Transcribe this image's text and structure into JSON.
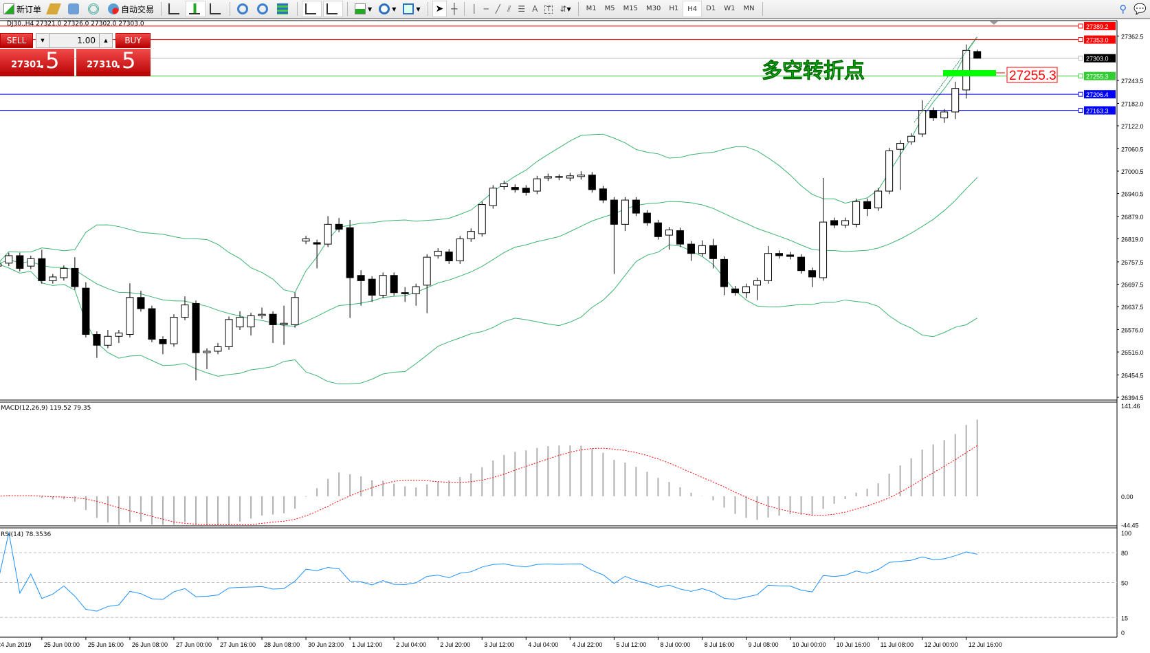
{
  "toolbar": {
    "new_order_label": "新订单",
    "auto_trading_label": "自动交易",
    "timeframes": [
      "M1",
      "M5",
      "M15",
      "M30",
      "H1",
      "H4",
      "D1",
      "W1",
      "MN"
    ],
    "active_timeframe": "H4"
  },
  "chart_header": "DJ30.,H4  27321.0 27326.0 27302.0 27303.0",
  "trade_panel": {
    "sell_label": "SELL",
    "buy_label": "BUY",
    "lot_value": "1.00",
    "sell_price_main": "27301",
    "sell_price_big": ".5",
    "buy_price_main": "27310",
    "buy_price_big": ".5"
  },
  "annotation": {
    "text": "多空转折点",
    "price_label": "27255.3",
    "color": "#00ff00"
  },
  "colors": {
    "bands": "#3cb371",
    "macd_hist": "#b0b0b0",
    "macd_signal": "#ff0000",
    "rsi": "#1e90ff",
    "line_red": "#ff0000",
    "line_green": "#32cd32",
    "line_blue": "#0000ff"
  },
  "chart_data": {
    "type": "candlestick",
    "symbol": "DJ30.",
    "timeframe": "H4",
    "ohlc": [
      [
        26746,
        26760,
        26738,
        26752
      ],
      [
        26754,
        26782,
        26746,
        26774
      ],
      [
        26774,
        26782,
        26732,
        26740
      ],
      [
        26746,
        26774,
        26738,
        26766
      ],
      [
        26766,
        26790,
        26699,
        26707
      ],
      [
        26707,
        26725,
        26699,
        26717
      ],
      [
        26715,
        26748,
        26707,
        26740
      ],
      [
        26740,
        26770,
        26683,
        26691
      ],
      [
        26687,
        26703,
        26555,
        26563
      ],
      [
        26563,
        26571,
        26500,
        26534
      ],
      [
        26534,
        26575,
        26526,
        26558
      ],
      [
        26558,
        26575,
        26540,
        26567
      ],
      [
        26563,
        26700,
        26555,
        26662
      ],
      [
        26662,
        26680,
        26624,
        26632
      ],
      [
        26632,
        26640,
        26542,
        26550
      ],
      [
        26550,
        26558,
        26510,
        26538
      ],
      [
        26538,
        26617,
        26530,
        26609
      ],
      [
        26609,
        26665,
        26601,
        26642
      ],
      [
        26646,
        26654,
        26440,
        26514
      ],
      [
        26514,
        26526,
        26470,
        26518
      ],
      [
        26518,
        26540,
        26510,
        26530
      ],
      [
        26530,
        26611,
        26522,
        26603
      ],
      [
        26583,
        26625,
        26575,
        26609
      ],
      [
        26583,
        26621,
        26560,
        26613
      ],
      [
        26613,
        26635,
        26605,
        26617
      ],
      [
        26617,
        26625,
        26540,
        26589
      ],
      [
        26589,
        26640,
        26535,
        26593
      ],
      [
        26589,
        26675,
        26581,
        26662
      ],
      [
        26813,
        26827,
        26805,
        26819
      ],
      [
        26809,
        26817,
        26740,
        26805
      ],
      [
        26805,
        26880,
        26797,
        26858
      ],
      [
        26858,
        26875,
        26837,
        26845
      ],
      [
        26849,
        26870,
        26607,
        26715
      ],
      [
        26721,
        26735,
        26640,
        26707
      ],
      [
        26711,
        26719,
        26650,
        26668
      ],
      [
        26668,
        26729,
        26660,
        26721
      ],
      [
        26721,
        26729,
        26667,
        26675
      ],
      [
        26675,
        26690,
        26650,
        26672
      ],
      [
        26672,
        26699,
        26640,
        26691
      ],
      [
        26695,
        26778,
        26620,
        26770
      ],
      [
        26774,
        26794,
        26766,
        26786
      ],
      [
        26784,
        26792,
        26752,
        26760
      ],
      [
        26760,
        26827,
        26752,
        26819
      ],
      [
        26819,
        26847,
        26811,
        26839
      ],
      [
        26833,
        26919,
        26825,
        26911
      ],
      [
        26908,
        26963,
        26900,
        26955
      ],
      [
        26959,
        26975,
        26951,
        26967
      ],
      [
        26957,
        26965,
        26943,
        26951
      ],
      [
        26955,
        26963,
        26935,
        26943
      ],
      [
        26947,
        26988,
        26939,
        26980
      ],
      [
        26982,
        26994,
        26974,
        26986
      ],
      [
        26986,
        26992,
        26976,
        26984
      ],
      [
        26982,
        26996,
        26974,
        26988
      ],
      [
        26986,
        27000,
        26978,
        26990
      ],
      [
        26990,
        26998,
        26943,
        26951
      ],
      [
        26953,
        26961,
        26915,
        26923
      ],
      [
        26923,
        26931,
        26725,
        26858
      ],
      [
        26858,
        26931,
        26840,
        26923
      ],
      [
        26923,
        26931,
        26880,
        26888
      ],
      [
        26888,
        26896,
        26854,
        26862
      ],
      [
        26862,
        26870,
        26817,
        26825
      ],
      [
        26829,
        26851,
        26790,
        26843
      ],
      [
        26841,
        26849,
        26797,
        26805
      ],
      [
        26805,
        26813,
        26760,
        26780
      ],
      [
        26780,
        26815,
        26772,
        26801
      ],
      [
        26801,
        26819,
        26740,
        26766
      ],
      [
        26764,
        26772,
        26668,
        26691
      ],
      [
        26685,
        26693,
        26667,
        26675
      ],
      [
        26675,
        26699,
        26660,
        26691
      ],
      [
        26695,
        26715,
        26655,
        26707
      ],
      [
        26707,
        26800,
        26699,
        26780
      ],
      [
        26780,
        26788,
        26766,
        26774
      ],
      [
        26776,
        26784,
        26764,
        26772
      ],
      [
        26770,
        26778,
        26726,
        26734
      ],
      [
        26734,
        26742,
        26690,
        26717
      ],
      [
        26715,
        26982,
        26707,
        26864
      ],
      [
        26868,
        26876,
        26848,
        26856
      ],
      [
        26856,
        26876,
        26848,
        26868
      ],
      [
        26858,
        26927,
        26850,
        26919
      ],
      [
        26919,
        26927,
        26880,
        26900
      ],
      [
        26902,
        26955,
        26894,
        26947
      ],
      [
        26947,
        27063,
        26939,
        27055
      ],
      [
        27059,
        27083,
        26950,
        27075
      ],
      [
        27079,
        27102,
        27071,
        27094
      ],
      [
        27100,
        27190,
        27092,
        27163
      ],
      [
        27163,
        27171,
        27135,
        27143
      ],
      [
        27143,
        27167,
        27130,
        27159
      ],
      [
        27159,
        27240,
        27140,
        27222
      ],
      [
        27218,
        27340,
        27195,
        27324
      ],
      [
        27321,
        27326,
        27302,
        27303
      ]
    ],
    "x_tick_labels": [
      "24 Jun 2019",
      "25 Jun 00:00",
      "25 Jun 16:00",
      "26 Jun 08:00",
      "27 Jun 00:00",
      "27 Jun 16:00",
      "28 Jun 08:00",
      "30 Jun 23:00",
      "1 Jul 12:00",
      "2 Jul 04:00",
      "2 Jul 20:00",
      "3 Jul 12:00",
      "4 Jul 04:00",
      "4 Jul 22:00",
      "5 Jul 12:00",
      "8 Jul 00:00",
      "8 Jul 16:00",
      "9 Jul 08:00",
      "10 Jul 00:00",
      "10 Jul 16:00",
      "11 Jul 08:00",
      "12 Jul 00:00",
      "12 Jul 16:00"
    ],
    "y_tick_labels": [
      "27362.5",
      "27243.5",
      "27182.0",
      "27122.0",
      "27060.5",
      "27000.5",
      "26940.5",
      "26879.0",
      "26819.0",
      "26757.5",
      "26697.5",
      "26637.5",
      "26576.0",
      "26516.0",
      "26454.5",
      "26394.5"
    ],
    "ylim": [
      26394.5,
      27400
    ],
    "horizontal_lines": [
      {
        "price": 27389.2,
        "label": "27389.2",
        "color": "#ff0000"
      },
      {
        "price": 27353.0,
        "label": "27353.0",
        "color": "#ff0000"
      },
      {
        "price": 27303.0,
        "label": "27303.0",
        "color": "#000000"
      },
      {
        "price": 27255.3,
        "label": "27255.3",
        "color": "#32cd32"
      },
      {
        "price": 27206.4,
        "label": "27206.4",
        "color": "#0000ff"
      },
      {
        "price": 27163.3,
        "label": "27163.3",
        "color": "#0000ff"
      }
    ],
    "bollinger": {
      "period": 20,
      "deviation": 2
    },
    "macd": {
      "label": "MACD(12,26,9) 119.52 79.35",
      "fast": 12,
      "slow": 26,
      "signal": 9,
      "last_main": 119.52,
      "last_signal": 79.35,
      "ylim": [
        -44.45,
        141.46
      ],
      "tick_labels": [
        "141.46",
        "0.00",
        "-44.45"
      ]
    },
    "rsi": {
      "label": "RSI(14) 78.3536",
      "period": 14,
      "last": 78.3536,
      "levels": [
        80,
        50,
        15
      ],
      "tick_labels": [
        "100",
        "80",
        "50",
        "15",
        "0"
      ]
    }
  }
}
